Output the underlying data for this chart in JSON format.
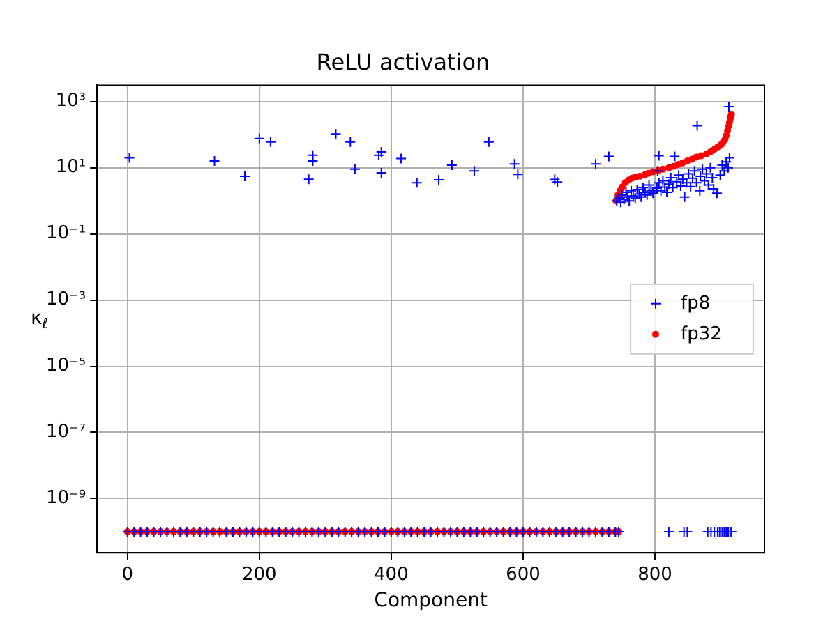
{
  "chart_data": {
    "type": "scatter",
    "title": "ReLU activation",
    "xlabel": "Component",
    "ylabel": "κ$_{ℓ}$",
    "xlim": [
      -46,
      966
    ],
    "xticks": [
      0,
      200,
      400,
      600,
      800
    ],
    "ylim": [
      2.3e-11,
      3100
    ],
    "yticks": [
      {
        "value": 1000,
        "label": "10³"
      },
      {
        "value": 10,
        "label": "10¹"
      },
      {
        "value": 0.1,
        "label": "10⁻¹"
      },
      {
        "value": 0.001,
        "label": "10⁻³"
      },
      {
        "value": 1e-05,
        "label": "10⁻⁵"
      },
      {
        "value": 1e-07,
        "label": "10⁻⁷"
      },
      {
        "value": 1e-09,
        "label": "10⁻⁹"
      }
    ],
    "log": "y",
    "grid": true,
    "legend": "center right",
    "series": [
      {
        "name": "fp8",
        "color": "#0000ff",
        "marker": "cross",
        "x": [
          0,
          10,
          20,
          30,
          40,
          50,
          60,
          70,
          80,
          90,
          100,
          110,
          120,
          130,
          140,
          150,
          160,
          170,
          180,
          190,
          200,
          210,
          220,
          230,
          240,
          250,
          260,
          270,
          280,
          290,
          300,
          310,
          320,
          330,
          340,
          350,
          360,
          370,
          380,
          390,
          400,
          410,
          420,
          430,
          440,
          450,
          460,
          470,
          480,
          490,
          500,
          510,
          520,
          530,
          540,
          550,
          560,
          570,
          580,
          590,
          600,
          610,
          620,
          630,
          640,
          650,
          660,
          670,
          680,
          690,
          700,
          710,
          720,
          730,
          740,
          745,
          821,
          844,
          849,
          880,
          885,
          890,
          895,
          898,
          902,
          905,
          908,
          911,
          914,
          916,
          3,
          132,
          178,
          200,
          217,
          275,
          281,
          281,
          316,
          338,
          345,
          381,
          385,
          385,
          415,
          439,
          472,
          492,
          526,
          548,
          587,
          592,
          648,
          652,
          710,
          730,
          806,
          830,
          864,
          912,
          742,
          745,
          748,
          750,
          753,
          756,
          758,
          761,
          764,
          767,
          770,
          773,
          776,
          779,
          782,
          785,
          788,
          791,
          794,
          797,
          804,
          803,
          806,
          809,
          812,
          815,
          818,
          821,
          824,
          827,
          845,
          833,
          836,
          839,
          842,
          848,
          851,
          854,
          857,
          860,
          863,
          868,
          869,
          872,
          875,
          878,
          881,
          884,
          887,
          889,
          894,
          899,
          902,
          905,
          908,
          911,
          913
        ],
        "values": [
          1e-10,
          1e-10,
          1e-10,
          1e-10,
          1e-10,
          1e-10,
          1e-10,
          1e-10,
          1e-10,
          1e-10,
          1e-10,
          1e-10,
          1e-10,
          1e-10,
          1e-10,
          1e-10,
          1e-10,
          1e-10,
          1e-10,
          1e-10,
          1e-10,
          1e-10,
          1e-10,
          1e-10,
          1e-10,
          1e-10,
          1e-10,
          1e-10,
          1e-10,
          1e-10,
          1e-10,
          1e-10,
          1e-10,
          1e-10,
          1e-10,
          1e-10,
          1e-10,
          1e-10,
          1e-10,
          1e-10,
          1e-10,
          1e-10,
          1e-10,
          1e-10,
          1e-10,
          1e-10,
          1e-10,
          1e-10,
          1e-10,
          1e-10,
          1e-10,
          1e-10,
          1e-10,
          1e-10,
          1e-10,
          1e-10,
          1e-10,
          1e-10,
          1e-10,
          1e-10,
          1e-10,
          1e-10,
          1e-10,
          1e-10,
          1e-10,
          1e-10,
          1e-10,
          1e-10,
          1e-10,
          1e-10,
          1e-10,
          1e-10,
          1e-10,
          1e-10,
          1e-10,
          1e-10,
          1e-10,
          1e-10,
          1e-10,
          1e-10,
          1e-10,
          1e-10,
          1e-10,
          1e-10,
          1e-10,
          1e-10,
          1e-10,
          1e-10,
          1e-10,
          1e-10,
          20,
          16,
          5.5,
          76,
          60,
          4.5,
          24,
          16,
          105,
          60,
          9,
          24,
          30,
          7,
          19,
          3.5,
          4.3,
          12,
          8,
          60,
          13,
          6.3,
          4.4,
          3.7,
          13,
          22,
          23,
          22,
          185,
          700,
          1.0,
          1.2,
          0.9,
          1.5,
          1.1,
          1.8,
          1.3,
          1.0,
          2.0,
          1.4,
          1.2,
          2.2,
          1.6,
          1.3,
          2.5,
          1.8,
          1.5,
          3.0,
          2.0,
          1.7,
          8,
          2.4,
          3.5,
          2.0,
          4.0,
          2.6,
          1.8,
          3.2,
          5.0,
          2.5,
          1.3,
          3.8,
          6.0,
          2.8,
          4.5,
          3.5,
          6.5,
          2.7,
          4.8,
          8.0,
          3.5,
          2.0,
          5.5,
          9.0,
          4.0,
          6.5,
          3.0,
          10,
          5.0,
          2.3,
          1.7,
          6.0,
          12,
          8.0,
          15,
          10,
          20
        ]
      },
      {
        "name": "fp32",
        "color": "#ff0000",
        "marker": "circle",
        "x": [
          0,
          10,
          20,
          30,
          40,
          50,
          60,
          70,
          80,
          90,
          100,
          110,
          120,
          130,
          140,
          150,
          160,
          170,
          180,
          190,
          200,
          210,
          220,
          230,
          240,
          250,
          260,
          270,
          280,
          290,
          300,
          310,
          320,
          330,
          340,
          350,
          360,
          370,
          380,
          390,
          400,
          410,
          420,
          430,
          440,
          450,
          460,
          470,
          480,
          490,
          500,
          510,
          520,
          530,
          540,
          550,
          560,
          570,
          580,
          590,
          600,
          610,
          620,
          630,
          640,
          650,
          660,
          670,
          680,
          690,
          700,
          710,
          720,
          730,
          740,
          745,
          741,
          744,
          747,
          750,
          755,
          760,
          765,
          770,
          777,
          785,
          790,
          797,
          805,
          812,
          821,
          828,
          835,
          842,
          849,
          856,
          863,
          870,
          878,
          884,
          890,
          895,
          900,
          903,
          906,
          908,
          910,
          912,
          913,
          914,
          915,
          916
        ],
        "values": [
          1e-10,
          1e-10,
          1e-10,
          1e-10,
          1e-10,
          1e-10,
          1e-10,
          1e-10,
          1e-10,
          1e-10,
          1e-10,
          1e-10,
          1e-10,
          1e-10,
          1e-10,
          1e-10,
          1e-10,
          1e-10,
          1e-10,
          1e-10,
          1e-10,
          1e-10,
          1e-10,
          1e-10,
          1e-10,
          1e-10,
          1e-10,
          1e-10,
          1e-10,
          1e-10,
          1e-10,
          1e-10,
          1e-10,
          1e-10,
          1e-10,
          1e-10,
          1e-10,
          1e-10,
          1e-10,
          1e-10,
          1e-10,
          1e-10,
          1e-10,
          1e-10,
          1e-10,
          1e-10,
          1e-10,
          1e-10,
          1e-10,
          1e-10,
          1e-10,
          1e-10,
          1e-10,
          1e-10,
          1e-10,
          1e-10,
          1e-10,
          1e-10,
          1e-10,
          1e-10,
          1e-10,
          1e-10,
          1e-10,
          1e-10,
          1e-10,
          1e-10,
          1e-10,
          1e-10,
          1e-10,
          1e-10,
          1e-10,
          1e-10,
          1e-10,
          1e-10,
          1e-10,
          1e-10,
          1.0,
          1.5,
          2.0,
          2.6,
          3.5,
          4.2,
          4.8,
          5.2,
          5.5,
          6.2,
          6.8,
          7.5,
          8.3,
          9.0,
          10,
          11,
          12.5,
          14,
          16,
          18,
          21,
          23,
          26,
          30,
          36,
          42,
          49,
          58,
          70,
          93,
          130,
          180,
          235,
          300,
          360,
          414
        ]
      }
    ]
  }
}
